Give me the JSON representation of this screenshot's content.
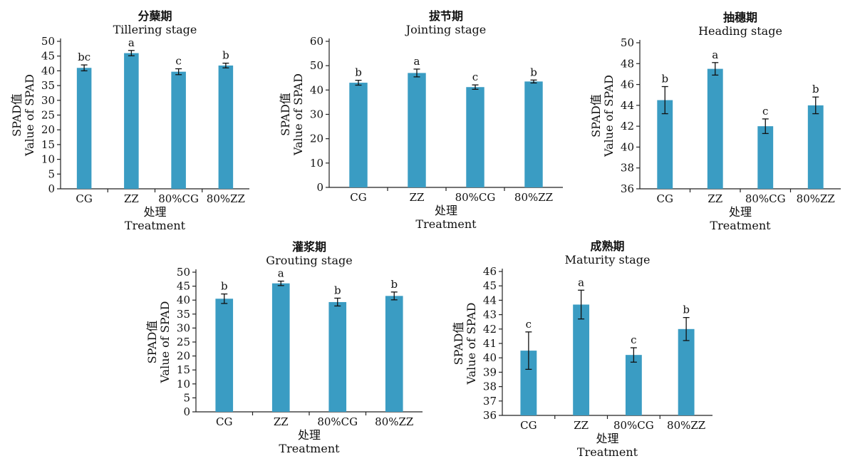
{
  "figure_title": "",
  "chart_data": [
    {
      "type": "bar",
      "title": "分蘖期",
      "subtitle": "Tillering stage",
      "xlabel": "处理",
      "xlabel_en": "Treatment",
      "ylabel": "SPAD值",
      "ylabel_en": "Value of SPAD",
      "categories": [
        "CG",
        "ZZ",
        "80%CG",
        "80%ZZ"
      ],
      "values": [
        41,
        46,
        39.7,
        41.8
      ],
      "errors": [
        1.0,
        0.9,
        1.0,
        0.8
      ],
      "letters": [
        "bc",
        "a",
        "c",
        "b"
      ],
      "ylim": [
        0,
        50
      ],
      "ytick_step": 5,
      "color": "#3a9cc3"
    },
    {
      "type": "bar",
      "title": "拔节期",
      "subtitle": "Jointing stage",
      "xlabel": "处理",
      "xlabel_en": "Treatment",
      "ylabel": "SPAD值",
      "ylabel_en": "Value of SPAD",
      "categories": [
        "CG",
        "ZZ",
        "80%CG",
        "80%ZZ"
      ],
      "values": [
        43,
        47,
        41.2,
        43.5
      ],
      "errors": [
        1.0,
        1.6,
        0.9,
        0.6
      ],
      "letters": [
        "b",
        "a",
        "c",
        "b"
      ],
      "ylim": [
        0,
        60
      ],
      "ytick_step": 10,
      "color": "#3a9cc3"
    },
    {
      "type": "bar",
      "title": "抽穗期",
      "subtitle": "Heading stage",
      "xlabel": "处理",
      "xlabel_en": "Treatment",
      "ylabel": "SPAD值",
      "ylabel_en": "Value of SPAD",
      "categories": [
        "CG",
        "ZZ",
        "80%CG",
        "80%ZZ"
      ],
      "values": [
        44.5,
        47.5,
        42,
        44
      ],
      "errors": [
        1.3,
        0.6,
        0.7,
        0.8
      ],
      "letters": [
        "b",
        "a",
        "c",
        "b"
      ],
      "ylim": [
        36,
        50
      ],
      "ytick_step": 2,
      "color": "#3a9cc3"
    },
    {
      "type": "bar",
      "title": "灌浆期",
      "subtitle": "Grouting stage",
      "xlabel": "处理",
      "xlabel_en": "Treatment",
      "ylabel": "SPAD值",
      "ylabel_en": "Value of SPAD",
      "categories": [
        "CG",
        "ZZ",
        "80%CG",
        "80%ZZ"
      ],
      "values": [
        40.5,
        46,
        39.3,
        41.5
      ],
      "errors": [
        1.7,
        0.8,
        1.4,
        1.4
      ],
      "letters": [
        "b",
        "a",
        "b",
        "b"
      ],
      "ylim": [
        0,
        50
      ],
      "ytick_step": 5,
      "color": "#3a9cc3"
    },
    {
      "type": "bar",
      "title": "成熟期",
      "subtitle": "Maturity stage",
      "xlabel": "处理",
      "xlabel_en": "Treatment",
      "ylabel": "SPAD值",
      "ylabel_en": "Value of SPAD",
      "categories": [
        "CG",
        "ZZ",
        "80%CG",
        "80%ZZ"
      ],
      "values": [
        40.5,
        43.7,
        40.2,
        42
      ],
      "errors": [
        1.3,
        1.0,
        0.5,
        0.8
      ],
      "letters": [
        "c",
        "a",
        "c",
        "b"
      ],
      "ylim": [
        36,
        46
      ],
      "ytick_step": 1,
      "color": "#3a9cc3"
    }
  ]
}
